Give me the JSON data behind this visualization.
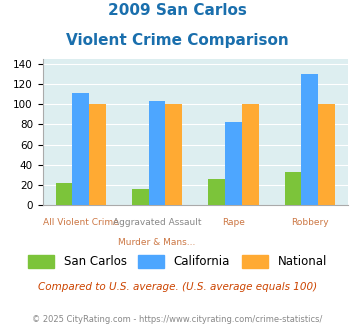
{
  "title_line1": "2009 San Carlos",
  "title_line2": "Violent Crime Comparison",
  "top_labels": [
    "",
    "Aggravated Assault",
    "",
    ""
  ],
  "bot_labels": [
    "All Violent Crime",
    "Murder & Mans...",
    "Rape",
    "Robbery"
  ],
  "san_carlos": [
    22,
    16,
    26,
    33
  ],
  "california": [
    111,
    103,
    82,
    130
  ],
  "national": [
    100,
    100,
    100,
    100
  ],
  "san_carlos_color": "#7cc43a",
  "california_color": "#4da6ff",
  "national_color": "#ffaa33",
  "bg_color": "#ddeef0",
  "ylim": [
    0,
    145
  ],
  "yticks": [
    0,
    20,
    40,
    60,
    80,
    100,
    120,
    140
  ],
  "subtitle": "Compared to U.S. average. (U.S. average equals 100)",
  "footer": "© 2025 CityRating.com - https://www.cityrating.com/crime-statistics/",
  "title_color": "#1a6fad",
  "subtitle_color": "#cc4400",
  "footer_color": "#888888",
  "top_label_color": "#888888",
  "bot_label_color": "#cc7744"
}
